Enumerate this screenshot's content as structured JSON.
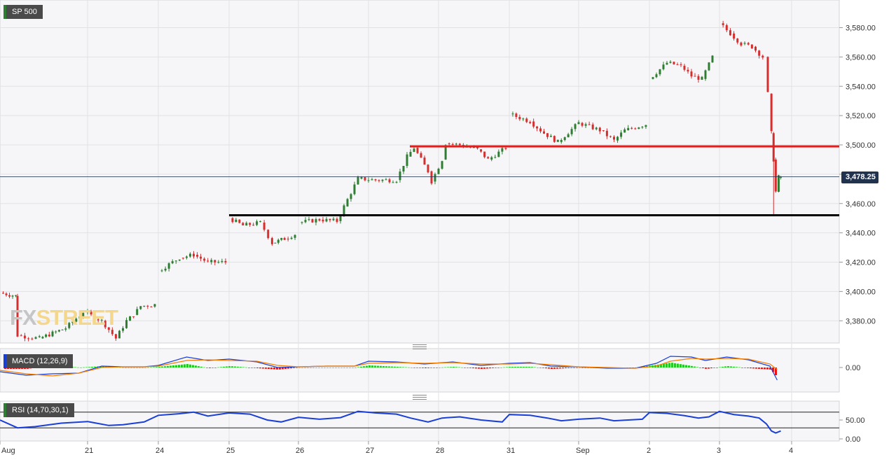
{
  "instrument": "SP 500",
  "current_price": "3,478.25",
  "macd_label": "MACD (12,26,9)",
  "rsi_label": "RSI (14,70,30,1)",
  "watermark": {
    "fx": "FX",
    "street": "STREET"
  },
  "colors": {
    "up": "#2e7d32",
    "down": "#d32f2f",
    "macd_line": "#1a3fd6",
    "signal_line": "#f57c00",
    "support": "#000000",
    "resistance": "#e01e1e",
    "price_line": "#21324f"
  },
  "chart_data": [
    {
      "type": "candlestick",
      "title": "SP 500",
      "y_ticks": [
        "3,380.00",
        "3,400.00",
        "3,420.00",
        "3,440.00",
        "3,460.00",
        "3,480.00",
        "3,500.00",
        "3,520.00",
        "3,540.00",
        "3,560.00",
        "3,580.00"
      ],
      "ylim": [
        3363,
        3593
      ],
      "x_tick_labels": [
        "Aug",
        "21",
        "24",
        "25",
        "26",
        "27",
        "28",
        "31",
        "Sep",
        "2",
        "3",
        "4"
      ],
      "grid": true,
      "last_price": 3478.25,
      "horizontal_levels": [
        {
          "value": 3499,
          "color": "red",
          "from": "27",
          "to": "4"
        },
        {
          "value": 3452,
          "color": "black",
          "from": "25",
          "to": "4"
        }
      ],
      "path_points": [
        [
          0.0,
          3399
        ],
        [
          0.18,
          3397
        ],
        [
          0.2,
          3370
        ],
        [
          0.45,
          3368
        ],
        [
          0.75,
          3375
        ],
        [
          0.95,
          3386
        ],
        [
          1.2,
          3380
        ],
        [
          1.4,
          3368
        ],
        [
          1.55,
          3380
        ],
        [
          1.65,
          3384
        ],
        [
          1.75,
          3390
        ],
        [
          1.95,
          3391
        ],
        [
          2.0,
          3414
        ],
        [
          2.3,
          3423
        ],
        [
          2.5,
          3425
        ],
        [
          2.7,
          3420
        ],
        [
          2.95,
          3420
        ],
        [
          3.0,
          3450
        ],
        [
          3.2,
          3445
        ],
        [
          3.45,
          3447
        ],
        [
          3.62,
          3433
        ],
        [
          3.8,
          3436
        ],
        [
          3.95,
          3439
        ],
        [
          4.0,
          3447
        ],
        [
          4.3,
          3449
        ],
        [
          4.55,
          3448
        ],
        [
          4.65,
          3458
        ],
        [
          4.85,
          3477
        ],
        [
          5.1,
          3476
        ],
        [
          5.4,
          3476
        ],
        [
          5.55,
          3492
        ],
        [
          5.65,
          3498
        ],
        [
          5.85,
          3482
        ],
        [
          5.9,
          3475
        ],
        [
          6.05,
          3490
        ],
        [
          6.1,
          3501
        ],
        [
          6.3,
          3500
        ],
        [
          6.55,
          3497
        ],
        [
          6.7,
          3490
        ],
        [
          6.95,
          3498
        ],
        [
          7.0,
          3521
        ],
        [
          7.3,
          3516
        ],
        [
          7.5,
          3508
        ],
        [
          7.7,
          3502
        ],
        [
          8.0,
          3515
        ],
        [
          8.3,
          3510
        ],
        [
          8.5,
          3503
        ],
        [
          8.65,
          3510
        ],
        [
          8.95,
          3514
        ],
        [
          9.0,
          3545
        ],
        [
          9.25,
          3556
        ],
        [
          9.45,
          3554
        ],
        [
          9.6,
          3547
        ],
        [
          9.75,
          3545
        ],
        [
          9.9,
          3560
        ],
        [
          10.0,
          3583
        ],
        [
          10.15,
          3576
        ],
        [
          10.3,
          3569
        ],
        [
          10.45,
          3567
        ],
        [
          10.6,
          3560
        ],
        [
          10.67,
          3535
        ],
        [
          10.72,
          3508
        ],
        [
          10.75,
          3490
        ],
        [
          10.78,
          3468
        ],
        [
          10.82,
          3478
        ],
        [
          10.85,
          3478
        ]
      ],
      "range_marks": [
        {
          "x": 10.75,
          "low": 3452,
          "high": 3505
        }
      ]
    },
    {
      "type": "line",
      "title": "MACD (12,26,9)",
      "y_ticks": [
        "0.00"
      ],
      "series": [
        {
          "role": "line",
          "color": "#1a3fd6",
          "points": [
            [
              0,
              -6
            ],
            [
              0.3,
              -11
            ],
            [
              0.6,
              -9
            ],
            [
              0.9,
              -8
            ],
            [
              1.2,
              2
            ],
            [
              1.5,
              1
            ],
            [
              1.8,
              1
            ],
            [
              2.0,
              3
            ],
            [
              2.4,
              15
            ],
            [
              2.7,
              10
            ],
            [
              3.0,
              12
            ],
            [
              3.4,
              8
            ],
            [
              3.7,
              0
            ],
            [
              4.0,
              1
            ],
            [
              4.4,
              2
            ],
            [
              4.8,
              2
            ],
            [
              5.0,
              9
            ],
            [
              5.4,
              8
            ],
            [
              5.8,
              5
            ],
            [
              6.2,
              8
            ],
            [
              6.6,
              3
            ],
            [
              7.0,
              6
            ],
            [
              7.3,
              7
            ],
            [
              7.6,
              2
            ],
            [
              8.0,
              1
            ],
            [
              8.4,
              -1
            ],
            [
              8.8,
              -1
            ],
            [
              9.1,
              6
            ],
            [
              9.3,
              16
            ],
            [
              9.6,
              15
            ],
            [
              9.8,
              10
            ],
            [
              10.1,
              15
            ],
            [
              10.4,
              11
            ],
            [
              10.7,
              2
            ],
            [
              10.8,
              -18
            ]
          ]
        },
        {
          "role": "signal",
          "color": "#f57c00",
          "points": [
            [
              0,
              -4
            ],
            [
              0.3,
              -9
            ],
            [
              0.6,
              -12
            ],
            [
              0.9,
              -8
            ],
            [
              1.2,
              0
            ],
            [
              1.5,
              1
            ],
            [
              1.8,
              1
            ],
            [
              2.0,
              2
            ],
            [
              2.4,
              10
            ],
            [
              2.7,
              11
            ],
            [
              3.0,
              10
            ],
            [
              3.4,
              9
            ],
            [
              3.7,
              3
            ],
            [
              4.0,
              1
            ],
            [
              4.4,
              2
            ],
            [
              4.8,
              2
            ],
            [
              5.0,
              6
            ],
            [
              5.4,
              7
            ],
            [
              5.8,
              6
            ],
            [
              6.2,
              7
            ],
            [
              6.6,
              5
            ],
            [
              7.0,
              5
            ],
            [
              7.3,
              6
            ],
            [
              7.6,
              4
            ],
            [
              8.0,
              1
            ],
            [
              8.4,
              0
            ],
            [
              8.8,
              -1
            ],
            [
              9.1,
              2
            ],
            [
              9.3,
              9
            ],
            [
              9.6,
              13
            ],
            [
              9.8,
              12
            ],
            [
              10.1,
              13
            ],
            [
              10.4,
              12
            ],
            [
              10.7,
              5
            ],
            [
              10.8,
              -3
            ]
          ]
        }
      ]
    },
    {
      "type": "line",
      "title": "RSI (14,70,30,1)",
      "y_ticks": [
        "50.00",
        "0.00"
      ],
      "levels": [
        70,
        30
      ],
      "points": [
        [
          0,
          50
        ],
        [
          0.2,
          30
        ],
        [
          0.4,
          33
        ],
        [
          0.7,
          42
        ],
        [
          1.0,
          46
        ],
        [
          1.3,
          36
        ],
        [
          1.5,
          38
        ],
        [
          1.8,
          45
        ],
        [
          2.0,
          62
        ],
        [
          2.3,
          66
        ],
        [
          2.5,
          70
        ],
        [
          2.7,
          60
        ],
        [
          3.0,
          68
        ],
        [
          3.3,
          65
        ],
        [
          3.55,
          50
        ],
        [
          3.75,
          45
        ],
        [
          4.0,
          57
        ],
        [
          4.3,
          52
        ],
        [
          4.6,
          56
        ],
        [
          4.85,
          72
        ],
        [
          5.1,
          68
        ],
        [
          5.4,
          65
        ],
        [
          5.6,
          55
        ],
        [
          5.85,
          45
        ],
        [
          6.05,
          55
        ],
        [
          6.3,
          58
        ],
        [
          6.6,
          50
        ],
        [
          6.9,
          45
        ],
        [
          7.0,
          64
        ],
        [
          7.3,
          62
        ],
        [
          7.55,
          55
        ],
        [
          7.75,
          48
        ],
        [
          8.0,
          52
        ],
        [
          8.3,
          55
        ],
        [
          8.5,
          48
        ],
        [
          8.7,
          50
        ],
        [
          8.9,
          52
        ],
        [
          9.0,
          69
        ],
        [
          9.25,
          67
        ],
        [
          9.5,
          61
        ],
        [
          9.7,
          55
        ],
        [
          9.85,
          58
        ],
        [
          10.0,
          72
        ],
        [
          10.2,
          64
        ],
        [
          10.4,
          60
        ],
        [
          10.55,
          55
        ],
        [
          10.65,
          40
        ],
        [
          10.72,
          22
        ],
        [
          10.78,
          17
        ],
        [
          10.85,
          22
        ]
      ]
    }
  ]
}
